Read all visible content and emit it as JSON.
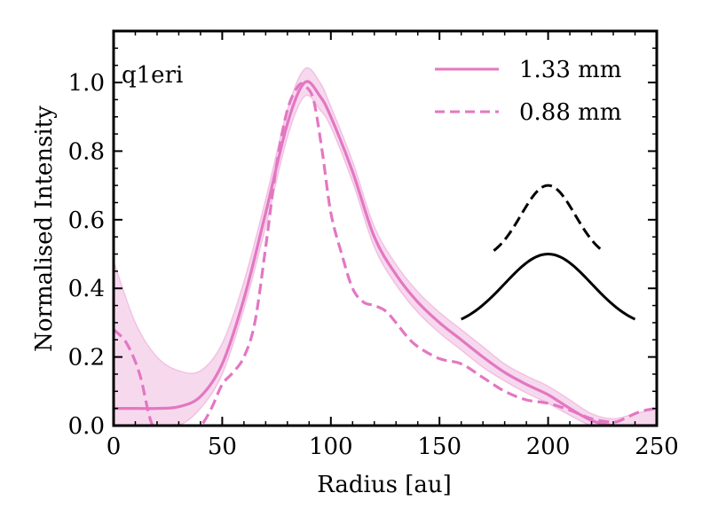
{
  "chart_data": {
    "type": "line",
    "title": "",
    "xlabel": "Radius [au]",
    "ylabel": "Normalised Intensity",
    "xlim": [
      0,
      250
    ],
    "ylim": [
      0,
      1.15
    ],
    "xticks": [
      0,
      50,
      100,
      150,
      200,
      250
    ],
    "xtick_labels": [
      "0",
      "50",
      "100",
      "150",
      "200",
      "250"
    ],
    "yticks": [
      0.0,
      0.2,
      0.4,
      0.6,
      0.8,
      1.0
    ],
    "ytick_labels": [
      "0.0",
      "0.2",
      "0.4",
      "0.6",
      "0.8",
      "1.0"
    ],
    "annotation": "q1eri",
    "legend_position": "top-right",
    "colors": {
      "series": "#e377c2",
      "band": "#e377c2",
      "inset": "#000000"
    },
    "series": [
      {
        "name": "1.33 mm",
        "style": "solid",
        "x": [
          0,
          10,
          20,
          30,
          40,
          50,
          60,
          70,
          80,
          88,
          95,
          100,
          110,
          120,
          130,
          140,
          150,
          160,
          170,
          180,
          190,
          200,
          210,
          220,
          230,
          240,
          250
        ],
        "y": [
          0.05,
          0.05,
          0.05,
          0.055,
          0.085,
          0.18,
          0.37,
          0.62,
          0.88,
          1.0,
          0.96,
          0.9,
          0.74,
          0.55,
          0.44,
          0.36,
          0.3,
          0.25,
          0.2,
          0.155,
          0.12,
          0.09,
          0.05,
          0.015,
          0.0,
          0.0,
          0.0
        ],
        "band_lower": [
          0.0,
          0.0,
          0.0,
          0.0,
          0.05,
          0.15,
          0.34,
          0.58,
          0.84,
          0.96,
          0.92,
          0.87,
          0.71,
          0.52,
          0.41,
          0.33,
          0.27,
          0.22,
          0.17,
          0.13,
          0.095,
          0.065,
          0.03,
          0.0,
          0.0,
          0.0,
          0.0
        ],
        "band_upper": [
          0.48,
          0.3,
          0.2,
          0.16,
          0.16,
          0.24,
          0.42,
          0.66,
          0.92,
          1.04,
          1.0,
          0.93,
          0.77,
          0.58,
          0.47,
          0.39,
          0.33,
          0.28,
          0.23,
          0.18,
          0.145,
          0.115,
          0.075,
          0.035,
          0.02,
          0.035,
          0.05
        ]
      },
      {
        "name": "0.88 mm",
        "style": "dashed",
        "x": [
          0,
          6,
          12,
          18,
          25,
          30,
          35,
          40,
          45,
          50,
          55,
          60,
          65,
          70,
          75,
          80,
          85,
          88,
          92,
          96,
          100,
          105,
          110,
          115,
          120,
          125,
          130,
          135,
          140,
          150,
          160,
          170,
          180,
          190,
          200,
          210,
          220,
          230,
          235,
          240,
          245,
          250
        ],
        "y": [
          0.28,
          0.24,
          0.15,
          0.0,
          0.0,
          0.0,
          0.0,
          0.0,
          0.05,
          0.12,
          0.155,
          0.2,
          0.3,
          0.52,
          0.76,
          0.92,
          0.99,
          0.99,
          0.95,
          0.8,
          0.62,
          0.5,
          0.4,
          0.36,
          0.35,
          0.335,
          0.3,
          0.26,
          0.23,
          0.195,
          0.18,
          0.14,
          0.1,
          0.075,
          0.065,
          0.045,
          0.02,
          0.01,
          0.02,
          0.035,
          0.045,
          0.05
        ]
      }
    ],
    "inset_profiles": [
      {
        "style": "solid",
        "x_center": 200,
        "half_width": 40,
        "peak": 0.5,
        "base": 0.31
      },
      {
        "style": "dashed",
        "x_center": 200,
        "half_width": 25,
        "peak": 0.7,
        "base": 0.51
      }
    ]
  }
}
